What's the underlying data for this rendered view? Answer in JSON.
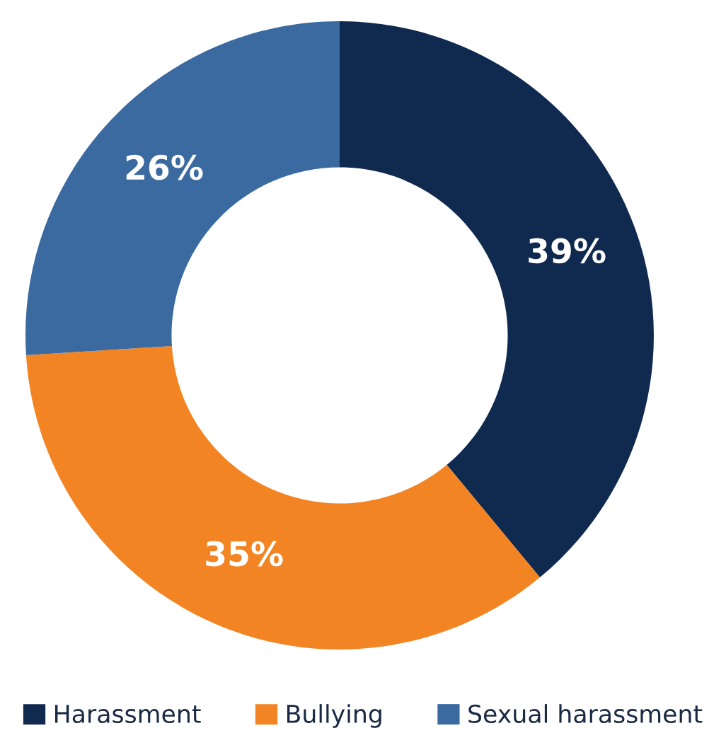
{
  "chart_data": {
    "type": "donut",
    "categories": [
      "Harassment",
      "Bullying",
      "Sexual harassment"
    ],
    "values": [
      39,
      35,
      26
    ],
    "colors": [
      "#0f2a4e",
      "#f28423",
      "#3a6aa0"
    ],
    "value_labels": [
      "39%",
      "35%",
      "26%"
    ],
    "legend": "bottom"
  }
}
